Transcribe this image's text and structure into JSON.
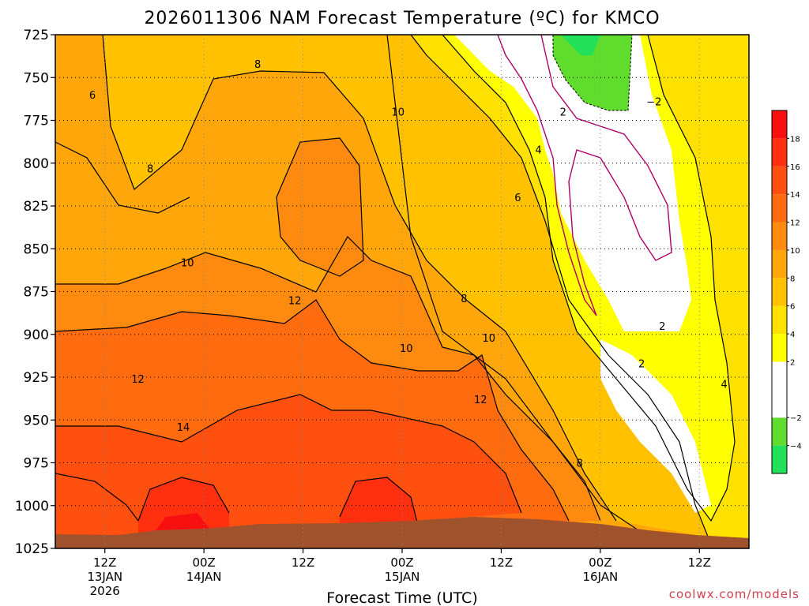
{
  "chart_data": {
    "type": "heatmap",
    "title": "2026011306 NAM Forecast Temperature (ºC) for KMCO",
    "xlabel": "Forecast Time (UTC)",
    "ylabel": "",
    "credit": "coolwx.com/models",
    "y_axis": {
      "unit": "hPa",
      "inverted": true,
      "ylim": [
        1025,
        725
      ],
      "ticks": [
        "725",
        "750",
        "775",
        "800",
        "825",
        "850",
        "875",
        "900",
        "925",
        "950",
        "975",
        "1000",
        "1025"
      ]
    },
    "x_axis": {
      "unit": "forecast hour",
      "xlim": [
        0,
        84
      ],
      "ticks": [
        {
          "hour": 6,
          "line1": "12Z",
          "line2": "13JAN",
          "line3": "2026"
        },
        {
          "hour": 18,
          "line1": "00Z",
          "line2": "14JAN",
          "line3": ""
        },
        {
          "hour": 30,
          "line1": "12Z",
          "line2": "",
          "line3": ""
        },
        {
          "hour": 42,
          "line1": "00Z",
          "line2": "15JAN",
          "line3": ""
        },
        {
          "hour": 54,
          "line1": "12Z",
          "line2": "",
          "line3": ""
        },
        {
          "hour": 66,
          "line1": "00Z",
          "line2": "16JAN",
          "line3": ""
        },
        {
          "hour": 78,
          "line1": "12Z",
          "line2": "",
          "line3": ""
        }
      ]
    },
    "grid": {
      "horizontal": true,
      "vertical": true,
      "style": "dotted"
    },
    "colorbar": {
      "position": "right",
      "tick_labels": [
        "18",
        "16",
        "14",
        "12",
        "10",
        "8",
        "6",
        "4",
        "2",
        "−2",
        "−4"
      ],
      "bins": [
        {
          "min": -6,
          "max": -4,
          "color": "#22e05a"
        },
        {
          "min": -4,
          "max": -2,
          "color": "#60dc2c"
        },
        {
          "min": -2,
          "max": 2,
          "color": "#ffffff"
        },
        {
          "min": 2,
          "max": 4,
          "color": "#ffff00"
        },
        {
          "min": 4,
          "max": 6,
          "color": "#ffe100"
        },
        {
          "min": 6,
          "max": 8,
          "color": "#ffc100"
        },
        {
          "min": 8,
          "max": 10,
          "color": "#ffa60a"
        },
        {
          "min": 10,
          "max": 12,
          "color": "#ff8a10"
        },
        {
          "min": 12,
          "max": 14,
          "color": "#ff6c10"
        },
        {
          "min": 14,
          "max": 16,
          "color": "#ff5010"
        },
        {
          "min": 16,
          "max": 18,
          "color": "#ff3010"
        },
        {
          "min": 18,
          "max": 20,
          "color": "#f81010"
        }
      ]
    },
    "ground_color": "#a0522d",
    "contour_labels": [
      {
        "text": "6",
        "hour": 4.5,
        "p": 760
      },
      {
        "text": "8",
        "hour": 11.5,
        "p": 803
      },
      {
        "text": "8",
        "hour": 24.5,
        "p": 742
      },
      {
        "text": "10",
        "hour": 41.5,
        "p": 770
      },
      {
        "text": "10",
        "hour": 16,
        "p": 858
      },
      {
        "text": "12",
        "hour": 29,
        "p": 880
      },
      {
        "text": "12",
        "hour": 10,
        "p": 926
      },
      {
        "text": "14",
        "hour": 15.5,
        "p": 954
      },
      {
        "text": "10",
        "hour": 42.5,
        "p": 908
      },
      {
        "text": "10",
        "hour": 52.5,
        "p": 902
      },
      {
        "text": "12",
        "hour": 51.5,
        "p": 938
      },
      {
        "text": "8",
        "hour": 49.5,
        "p": 879
      },
      {
        "text": "6",
        "hour": 56,
        "p": 820
      },
      {
        "text": "4",
        "hour": 58.5,
        "p": 792
      },
      {
        "text": "2",
        "hour": 61.5,
        "p": 770
      },
      {
        "text": "8",
        "hour": 63.5,
        "p": 975
      },
      {
        "text": "−2",
        "hour": 72.5,
        "p": 764
      },
      {
        "text": "2",
        "hour": 73.5,
        "p": 895
      },
      {
        "text": "2",
        "hour": 71,
        "p": 917
      },
      {
        "text": "4",
        "hour": 81,
        "p": 929
      }
    ]
  }
}
